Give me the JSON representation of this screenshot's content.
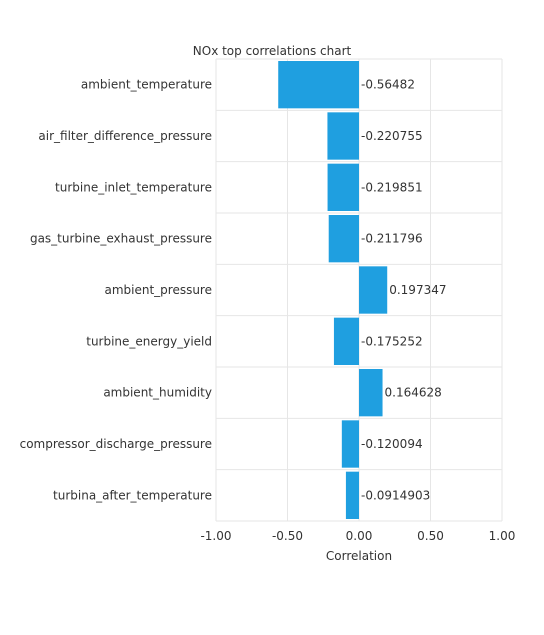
{
  "chart_data": {
    "type": "bar",
    "orientation": "horizontal",
    "title": "NOx top correlations chart",
    "xlabel": "Correlation",
    "ylabel": "",
    "xlim": [
      -1,
      1
    ],
    "xticks": [
      -1,
      -0.5,
      0,
      0.5,
      1
    ],
    "xtick_labels": [
      "-1.00",
      "-0.50",
      "0.00",
      "0.50",
      "1.00"
    ],
    "categories": [
      "ambient_temperature",
      "air_filter_difference_pressure",
      "turbine_inlet_temperature",
      "gas_turbine_exhaust_pressure",
      "ambient_pressure",
      "turbine_energy_yield",
      "ambient_humidity",
      "compressor_discharge_pressure",
      "turbina_after_temperature"
    ],
    "values": [
      -0.56482,
      -0.220755,
      -0.219851,
      -0.211796,
      0.197347,
      -0.175252,
      0.164628,
      -0.120094,
      -0.0914903
    ],
    "value_labels": [
      "-0.56482",
      "-0.220755",
      "-0.219851",
      "-0.211796",
      "0.197347",
      "-0.175252",
      "0.164628",
      "-0.120094",
      "-0.0914903"
    ],
    "grid": true,
    "colors": {
      "bar": "#1f9fe0",
      "grid": "#e6e6e6",
      "text": "#333333"
    }
  }
}
